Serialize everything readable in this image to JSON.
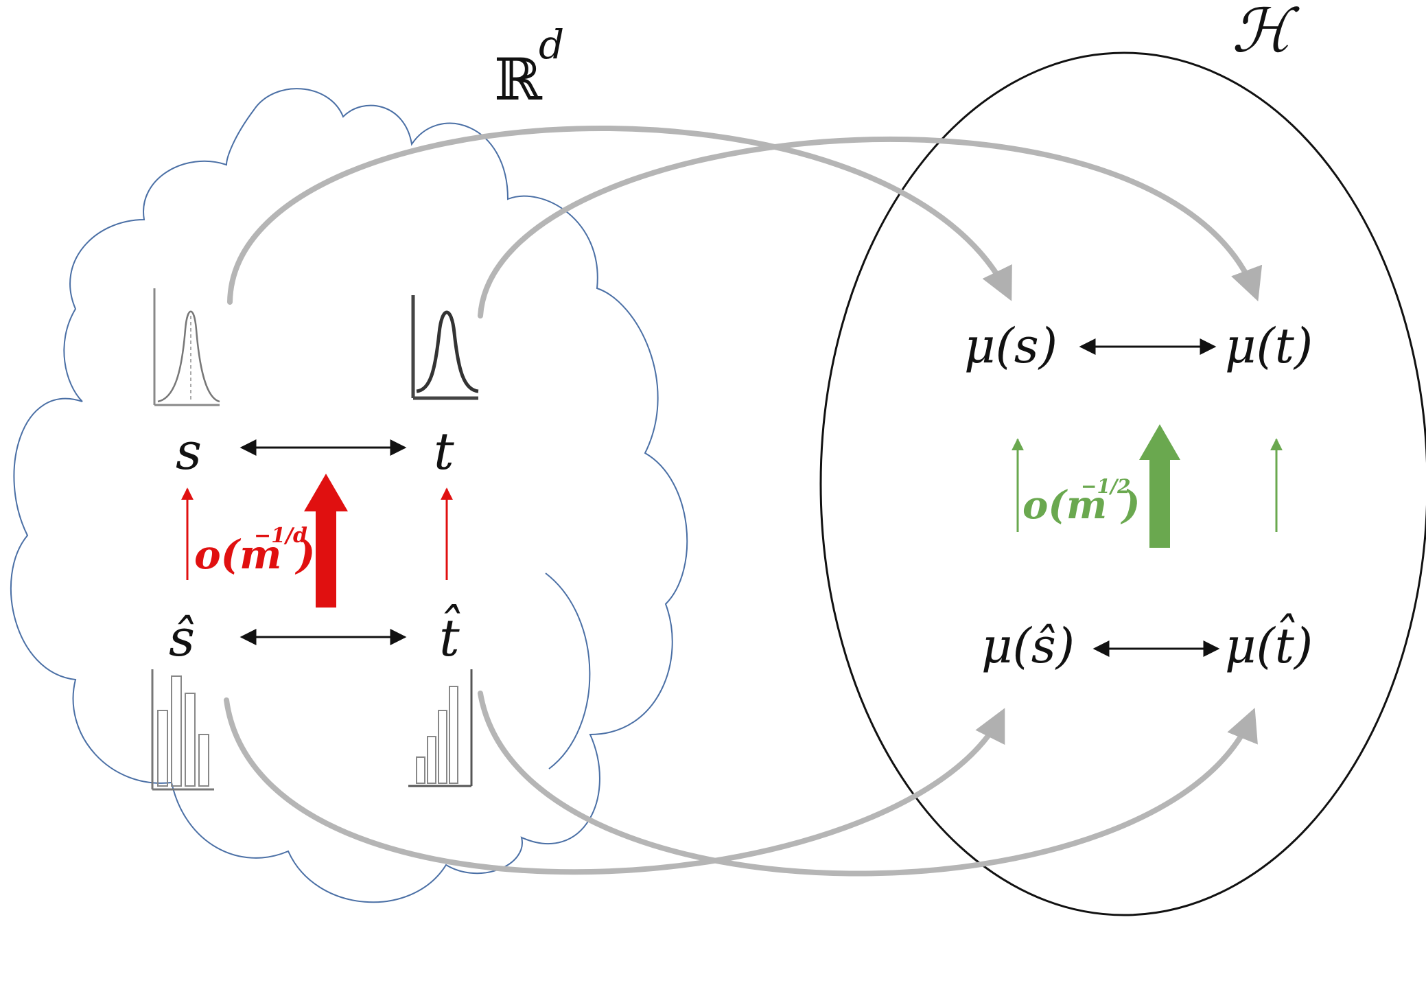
{
  "labels": {
    "euclidean_space": "ℝ",
    "euclidean_dim": "d",
    "hilbert_space": "ℋ",
    "s": "s",
    "t": "t",
    "s_hat": "ŝ",
    "t_hat": "t̂",
    "mu_s": "μ(s)",
    "mu_t": "μ(t)",
    "mu_s_hat": "μ(ŝ)",
    "mu_t_hat": "μ(t̂)"
  },
  "rate_annotations": {
    "left": {
      "base": "o(m",
      "exponent": "−1/d",
      "close": ")",
      "color": "#e01010"
    },
    "right": {
      "base": "o(m",
      "exponent": "−1/2",
      "close": ")",
      "color": "#6aa84f"
    }
  },
  "colors": {
    "cloud_outline": "#4a6fa5",
    "circle_outline": "#111111",
    "embedding_arrows": "#b8b8b8",
    "distance_arrows": "#111111",
    "convergence_red": "#e01010",
    "convergence_green": "#6aa84f"
  },
  "icons": {
    "s_density": "gaussian-density-icon",
    "t_density": "gaussian-density-icon",
    "s_hat_histogram": "histogram-icon",
    "t_hat_histogram": "histogram-icon"
  }
}
